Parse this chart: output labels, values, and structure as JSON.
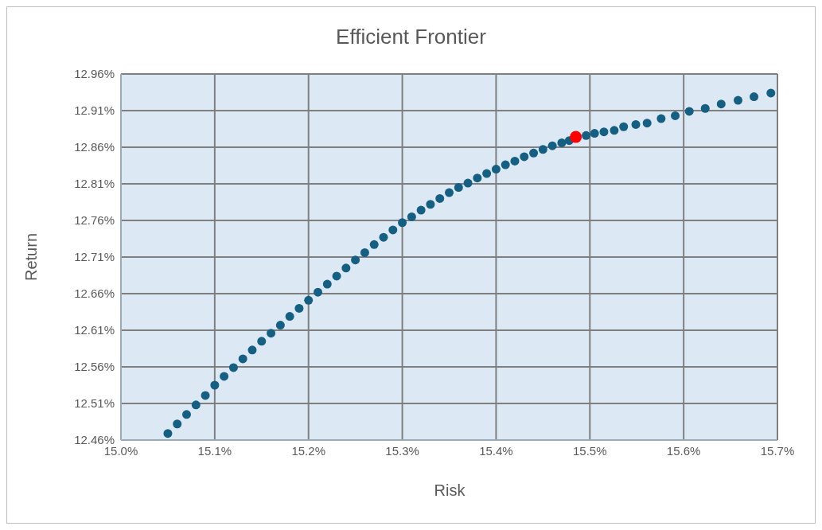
{
  "chart_data": {
    "type": "scatter",
    "title": "Efficient Frontier",
    "xlabel": "Risk",
    "ylabel": "Return",
    "marker": "circle",
    "grid": true,
    "legend": false,
    "xlim": [
      15.0,
      15.7
    ],
    "xticks": [
      {
        "value": 15.0,
        "label": "15.0%"
      },
      {
        "value": 15.1,
        "label": "15.1%"
      },
      {
        "value": 15.2,
        "label": "15.2%"
      },
      {
        "value": 15.3,
        "label": "15.3%"
      },
      {
        "value": 15.4,
        "label": "15.4%"
      },
      {
        "value": 15.5,
        "label": "15.5%"
      },
      {
        "value": 15.6,
        "label": "15.6%"
      },
      {
        "value": 15.7,
        "label": "15.7%"
      }
    ],
    "ylim": [
      12.46,
      12.96
    ],
    "yticks": [
      {
        "value": 12.46,
        "label": "12.46%"
      },
      {
        "value": 12.51,
        "label": "12.51%"
      },
      {
        "value": 12.56,
        "label": "12.56%"
      },
      {
        "value": 12.61,
        "label": "12.61%"
      },
      {
        "value": 12.66,
        "label": "12.66%"
      },
      {
        "value": 12.71,
        "label": "12.71%"
      },
      {
        "value": 12.76,
        "label": "12.76%"
      },
      {
        "value": 12.81,
        "label": "12.81%"
      },
      {
        "value": 12.86,
        "label": "12.86%"
      },
      {
        "value": 12.91,
        "label": "12.91%"
      },
      {
        "value": 12.96,
        "label": "12.96%"
      }
    ],
    "series": [
      {
        "color": "#155f82",
        "x": [
          15.05,
          15.06,
          15.07,
          15.08,
          15.09,
          15.1,
          15.11,
          15.12,
          15.13,
          15.14,
          15.15,
          15.16,
          15.17,
          15.18,
          15.19,
          15.2,
          15.21,
          15.22,
          15.23,
          15.24,
          15.25,
          15.26,
          15.27,
          15.28,
          15.29,
          15.3,
          15.31,
          15.32,
          15.33,
          15.34,
          15.35,
          15.36,
          15.37,
          15.38,
          15.39,
          15.4,
          15.41,
          15.42,
          15.43,
          15.44,
          15.45,
          15.46,
          15.47,
          15.478,
          15.496,
          15.505,
          15.515,
          15.526,
          15.536,
          15.549,
          15.561,
          15.576,
          15.591,
          15.606,
          15.623,
          15.64,
          15.658,
          15.675,
          15.693
        ],
        "values": [
          12.469,
          12.482,
          12.495,
          12.508,
          12.521,
          12.535,
          12.547,
          12.559,
          12.571,
          12.583,
          12.595,
          12.606,
          12.617,
          12.629,
          12.64,
          12.651,
          12.662,
          12.673,
          12.684,
          12.695,
          12.706,
          12.716,
          12.727,
          12.737,
          12.747,
          12.757,
          12.765,
          12.774,
          12.782,
          12.79,
          12.798,
          12.805,
          12.811,
          12.818,
          12.824,
          12.83,
          12.836,
          12.841,
          12.847,
          12.852,
          12.857,
          12.862,
          12.866,
          12.869,
          12.876,
          12.879,
          12.881,
          12.883,
          12.888,
          12.891,
          12.893,
          12.899,
          12.903,
          12.909,
          12.913,
          12.919,
          12.924,
          12.929,
          12.934
        ]
      },
      {
        "color": "#ff0000",
        "x": [
          15.485
        ],
        "values": [
          12.874
        ]
      }
    ]
  }
}
